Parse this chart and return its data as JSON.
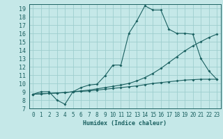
{
  "xlabel": "Humidex (Indice chaleur)",
  "xlim": [
    -0.5,
    23.5
  ],
  "ylim": [
    7,
    19.5
  ],
  "yticks": [
    7,
    8,
    9,
    10,
    11,
    12,
    13,
    14,
    15,
    16,
    17,
    18,
    19
  ],
  "xticks": [
    0,
    1,
    2,
    3,
    4,
    5,
    6,
    7,
    8,
    9,
    10,
    11,
    12,
    13,
    14,
    15,
    16,
    17,
    18,
    19,
    20,
    21,
    22,
    23
  ],
  "bg_color": "#c5e8e8",
  "grid_color": "#9ecece",
  "line_color": "#1a6060",
  "line1_x": [
    0,
    1,
    2,
    3,
    4,
    5,
    6,
    7,
    8,
    9,
    10,
    11,
    12,
    13,
    14,
    15,
    16,
    17,
    18,
    19,
    20,
    21,
    22,
    23
  ],
  "line1_y": [
    8.7,
    9.0,
    9.0,
    8.0,
    7.5,
    9.0,
    9.5,
    9.8,
    9.9,
    10.9,
    12.2,
    12.2,
    16.0,
    17.5,
    19.3,
    18.8,
    18.8,
    16.5,
    16.0,
    16.0,
    15.9,
    13.0,
    11.5,
    10.5
  ],
  "line2_x": [
    0,
    1,
    2,
    3,
    4,
    5,
    6,
    7,
    8,
    9,
    10,
    11,
    12,
    13,
    14,
    15,
    16,
    17,
    18,
    19,
    20,
    21,
    22,
    23
  ],
  "line2_y": [
    8.7,
    8.75,
    8.8,
    8.85,
    8.9,
    9.0,
    9.1,
    9.2,
    9.35,
    9.5,
    9.65,
    9.8,
    10.0,
    10.3,
    10.7,
    11.2,
    11.8,
    12.5,
    13.2,
    13.9,
    14.5,
    15.0,
    15.5,
    15.9
  ],
  "line3_x": [
    0,
    1,
    2,
    3,
    4,
    5,
    6,
    7,
    8,
    9,
    10,
    11,
    12,
    13,
    14,
    15,
    16,
    17,
    18,
    19,
    20,
    21,
    22,
    23
  ],
  "line3_y": [
    8.7,
    8.75,
    8.8,
    8.85,
    8.9,
    9.0,
    9.05,
    9.1,
    9.2,
    9.3,
    9.4,
    9.5,
    9.6,
    9.7,
    9.85,
    10.0,
    10.1,
    10.2,
    10.3,
    10.4,
    10.45,
    10.5,
    10.5,
    10.5
  ]
}
